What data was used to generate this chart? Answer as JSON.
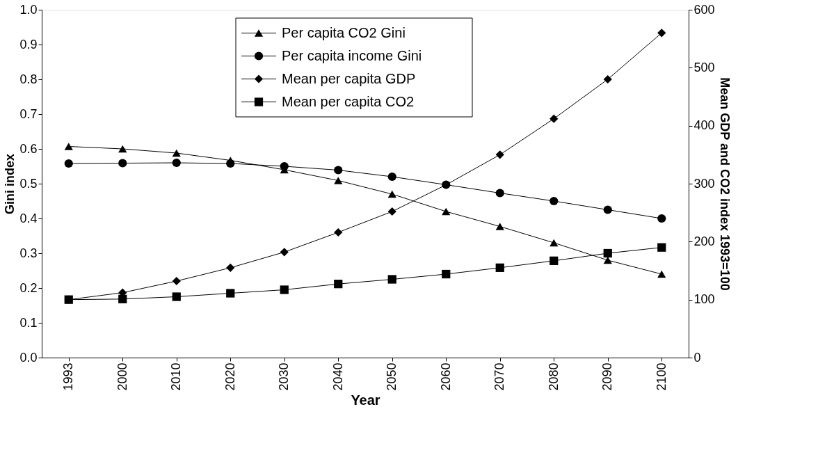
{
  "chart_data": {
    "type": "line",
    "xlabel": "Year",
    "ylabel": "Gini index",
    "y2label": "Mean GDP and CO2 index 1993=100",
    "categories": [
      "1993",
      "2000",
      "2010",
      "2020",
      "2030",
      "2040",
      "2050",
      "2060",
      "2070",
      "2080",
      "2090",
      "2100"
    ],
    "series": [
      {
        "name": "Per capita CO2 Gini",
        "color": "#000000",
        "marker": "triangle",
        "values": [
          0.607,
          0.6,
          0.588,
          0.567,
          0.54,
          0.509,
          0.47,
          0.42,
          0.377,
          0.33,
          0.28,
          0.24
        ]
      },
      {
        "name": "Per capita income Gini",
        "color": "#000000",
        "marker": "circle",
        "values": [
          0.558,
          0.559,
          0.56,
          0.558,
          0.55,
          0.539,
          0.52,
          0.497,
          0.473,
          0.45,
          0.425,
          0.4
        ]
      },
      {
        "name": "Mean per capita GDP",
        "color": "#000000",
        "marker": "diamond",
        "axis": "y2",
        "values": [
          100,
          112,
          132,
          155,
          182,
          216,
          252,
          298,
          350,
          412,
          480,
          560
        ]
      },
      {
        "name": "Mean per capita CO2",
        "color": "#000000",
        "marker": "square",
        "axis": "y2",
        "values": [
          100,
          101,
          105,
          111,
          117,
          127,
          135,
          144,
          155,
          167,
          180,
          190
        ]
      }
    ],
    "ylim": [
      0,
      1
    ],
    "yticks": [
      {
        "value": 0,
        "label": "0.0"
      },
      0.1,
      0.2,
      0.3,
      0.4,
      0.5,
      0.6,
      0.7,
      0.8,
      0.9,
      {
        "value": 1,
        "label": "1.0"
      }
    ],
    "y2lim": [
      0,
      600
    ],
    "y2ticks": [
      0,
      100,
      200,
      300,
      400,
      500,
      600
    ],
    "grid": false,
    "legend": "top",
    "line_style": "solid"
  }
}
